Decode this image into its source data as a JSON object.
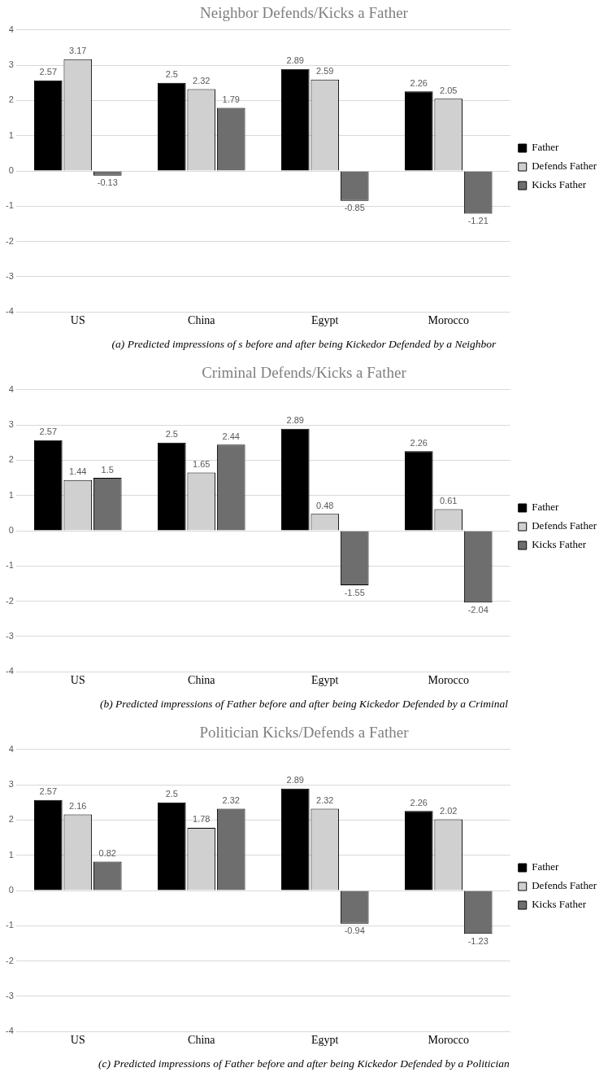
{
  "chart_data": [
    {
      "type": "bar",
      "title": "Neighbor Defends/Kicks a Father",
      "categories": [
        "US",
        "China",
        "Egypt",
        "Morocco"
      ],
      "series": [
        {
          "name": "Father",
          "color": "#000000",
          "values": [
            2.57,
            2.5,
            2.89,
            2.26
          ]
        },
        {
          "name": "Defends Father",
          "color": "#d0d0d0",
          "values": [
            3.17,
            2.32,
            2.59,
            2.05
          ]
        },
        {
          "name": "Kicks Father",
          "color": "#6e6e6e",
          "values": [
            -0.13,
            1.79,
            -0.85,
            -1.21
          ]
        }
      ],
      "ylim": [
        -4,
        4
      ],
      "yticks": [
        -4,
        -3,
        -2,
        -1,
        0,
        1,
        2,
        3,
        4
      ],
      "grid": "y",
      "legend": "right",
      "data_labels": true,
      "annotations": [
        "(a) Predicted impressions of s before and after being Kickedor Defended by a Neighbor"
      ]
    },
    {
      "type": "bar",
      "title": "Criminal Defends/Kicks a Father",
      "categories": [
        "US",
        "China",
        "Egypt",
        "Morocco"
      ],
      "series": [
        {
          "name": "Father",
          "color": "#000000",
          "values": [
            2.57,
            2.5,
            2.89,
            2.26
          ]
        },
        {
          "name": "Defends Father",
          "color": "#d0d0d0",
          "values": [
            1.44,
            1.65,
            0.48,
            0.61
          ]
        },
        {
          "name": "Kicks Father",
          "color": "#6e6e6e",
          "values": [
            1.5,
            2.44,
            -1.55,
            -2.04
          ]
        }
      ],
      "ylim": [
        -4,
        4
      ],
      "yticks": [
        -4,
        -3,
        -2,
        -1,
        0,
        1,
        2,
        3,
        4
      ],
      "grid": "y",
      "legend": "right",
      "data_labels": true,
      "annotations": [
        "(b) Predicted impressions of  Father before and after being Kickedor Defended by a Criminal"
      ]
    },
    {
      "type": "bar",
      "title": "Politician Kicks/Defends a Father",
      "categories": [
        "US",
        "China",
        "Egypt",
        "Morocco"
      ],
      "series": [
        {
          "name": "Father",
          "color": "#000000",
          "values": [
            2.57,
            2.5,
            2.89,
            2.26
          ]
        },
        {
          "name": "Defends Father",
          "color": "#d0d0d0",
          "values": [
            2.16,
            1.78,
            2.32,
            2.02
          ]
        },
        {
          "name": "Kicks Father",
          "color": "#6e6e6e",
          "values": [
            0.82,
            2.32,
            -0.94,
            -1.23
          ]
        }
      ],
      "ylim": [
        -4,
        4
      ],
      "yticks": [
        -4,
        -3,
        -2,
        -1,
        0,
        1,
        2,
        3,
        4
      ],
      "grid": "y",
      "legend": "right",
      "data_labels": true,
      "annotations": [
        "(c) Predicted impressions of  Father before and after being Kickedor Defended by a Politician"
      ]
    }
  ]
}
